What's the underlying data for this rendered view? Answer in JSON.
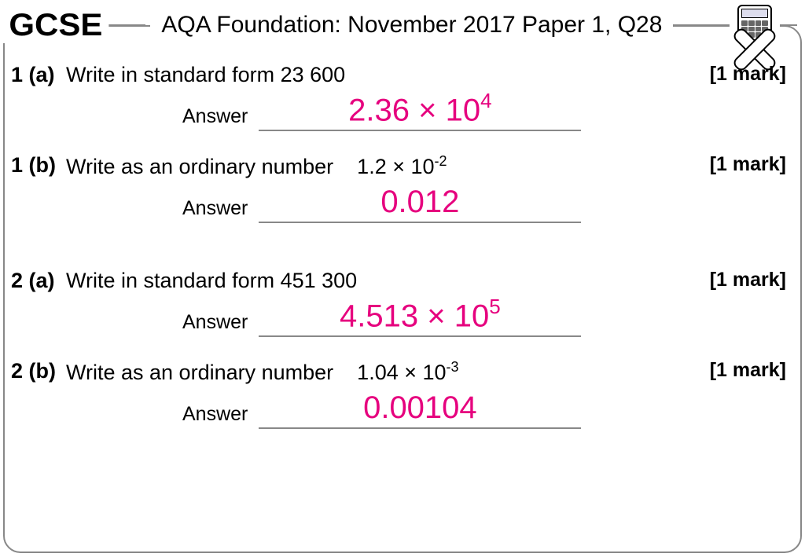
{
  "header": {
    "brand": "GCSE",
    "title": "AQA Foundation: November 2017 Paper 1, Q28"
  },
  "colors": {
    "answer": "#e6007e",
    "border": "#888888",
    "text": "#000000",
    "background": "#ffffff"
  },
  "questions": [
    {
      "number": "1 (a)",
      "prompt": "Write in standard form 23 600",
      "marks": "[1 mark]",
      "answer_label": "Answer",
      "student_answer_html": "2.36 × 10<sup>4</sup>",
      "given_html": ""
    },
    {
      "number": "1 (b)",
      "prompt_prefix": "Write as an ordinary number",
      "given_html": "1.2  × 10<sup>-2</sup>",
      "marks": "[1 mark]",
      "answer_label": "Answer",
      "student_answer_html": "0.012"
    },
    {
      "number": "2 (a)",
      "prompt": "Write in standard form 451 300",
      "marks": "[1 mark]",
      "answer_label": "Answer",
      "student_answer_html": "4.513 × 10<sup>5</sup>",
      "given_html": ""
    },
    {
      "number": "2 (b)",
      "prompt_prefix": "Write as an ordinary number",
      "given_html": "1.04  × 10<sup>-3</sup>",
      "marks": "[1 mark]",
      "answer_label": "Answer",
      "student_answer_html": "0.00104"
    }
  ]
}
